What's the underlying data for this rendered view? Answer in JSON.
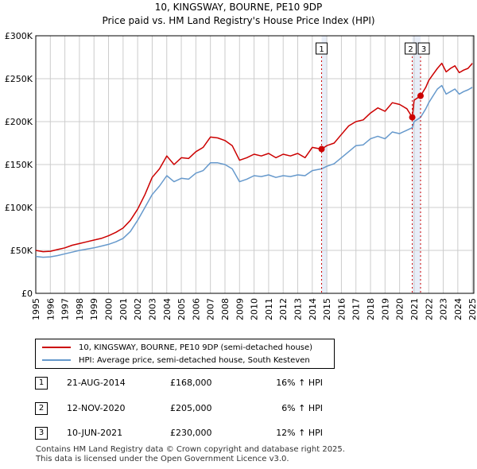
{
  "title_line1": "10, KINGSWAY, BOURNE, PE10 9DP",
  "title_line2": "Price paid vs. HM Land Registry's House Price Index (HPI)",
  "colors": {
    "property": "#cc0000",
    "hpi": "#6699cc",
    "shade": "#e8eef8",
    "grid": "#cccccc"
  },
  "legend": {
    "property_label": "10, KINGSWAY, BOURNE, PE10 9DP (semi-detached house)",
    "hpi_label": "HPI: Average price, semi-detached house, South Kesteven"
  },
  "transactions": [
    {
      "num": "1",
      "date": "21-AUG-2014",
      "price": "£168,000",
      "hpi": "16% ↑ HPI"
    },
    {
      "num": "2",
      "date": "12-NOV-2020",
      "price": "£205,000",
      "hpi": "6% ↑ HPI"
    },
    {
      "num": "3",
      "date": "10-JUN-2021",
      "price": "£230,000",
      "hpi": "12% ↑ HPI"
    }
  ],
  "footer_line1": "Contains HM Land Registry data © Crown copyright and database right 2025.",
  "footer_line2": "This data is licensed under the Open Government Licence v3.0.",
  "chart_data": {
    "type": "line",
    "title": "10, KINGSWAY, BOURNE, PE10 9DP",
    "subtitle": "Price paid vs. HM Land Registry's House Price Index (HPI)",
    "xlabel": "",
    "ylabel": "",
    "xlim": [
      1995,
      2025.1
    ],
    "ylim": [
      0,
      300000
    ],
    "yticks": [
      0,
      50000,
      100000,
      150000,
      200000,
      250000,
      300000
    ],
    "ytick_labels": [
      "£0",
      "£50K",
      "£100K",
      "£150K",
      "£200K",
      "£250K",
      "£300K"
    ],
    "xticks": [
      "1995",
      "1996",
      "1997",
      "1998",
      "1999",
      "2000",
      "2001",
      "2002",
      "2003",
      "2004",
      "2005",
      "2006",
      "2007",
      "2008",
      "2009",
      "2010",
      "2011",
      "2012",
      "2013",
      "2014",
      "2015",
      "2016",
      "2017",
      "2018",
      "2019",
      "2020",
      "2021",
      "2022",
      "2023",
      "2024",
      "2025"
    ],
    "grid": true,
    "legend_position": "below",
    "shaded_ranges": [
      [
        2014.64,
        2015.0
      ],
      [
        2020.87,
        2021.44
      ]
    ],
    "sales": [
      {
        "label": "1",
        "x": 2014.64,
        "y": 168000
      },
      {
        "label": "2",
        "x": 2020.87,
        "y": 205000
      },
      {
        "label": "3",
        "x": 2021.44,
        "y": 230000
      }
    ],
    "series": [
      {
        "name": "10, KINGSWAY, BOURNE, PE10 9DP (semi-detached house)",
        "x": [
          1995,
          1995.5,
          1996,
          1996.5,
          1997,
          1997.5,
          1998,
          1998.5,
          1999,
          1999.5,
          2000,
          2000.5,
          2001,
          2001.5,
          2002,
          2002.5,
          2003,
          2003.5,
          2004,
          2004.5,
          2005,
          2005.5,
          2006,
          2006.5,
          2007,
          2007.5,
          2008,
          2008.5,
          2009,
          2009.5,
          2010,
          2010.5,
          2011,
          2011.5,
          2012,
          2012.5,
          2013,
          2013.5,
          2014,
          2014.64,
          2015,
          2015.5,
          2016,
          2016.5,
          2017,
          2017.5,
          2018,
          2018.5,
          2019,
          2019.5,
          2020,
          2020.5,
          2020.87,
          2021,
          2021.44,
          2021.8,
          2022,
          2022.3,
          2022.6,
          2022.9,
          2023.2,
          2023.5,
          2023.8,
          2024.1,
          2024.4,
          2024.7,
          2025
        ],
        "values": [
          50000,
          48500,
          49000,
          51000,
          53000,
          56000,
          58000,
          60000,
          62000,
          64000,
          67000,
          71000,
          76000,
          85000,
          98000,
          115000,
          135000,
          145000,
          160000,
          150000,
          158000,
          157000,
          165000,
          170000,
          182000,
          181000,
          178000,
          172000,
          155000,
          158000,
          162000,
          160000,
          163000,
          158000,
          162000,
          160000,
          163000,
          158000,
          170000,
          168000,
          172000,
          175000,
          185000,
          195000,
          200000,
          202000,
          210000,
          216000,
          212000,
          222000,
          220000,
          215000,
          205000,
          225000,
          230000,
          240000,
          248000,
          255000,
          262000,
          268000,
          258000,
          262000,
          265000,
          257000,
          260000,
          262000,
          268000
        ]
      },
      {
        "name": "HPI: Average price, semi-detached house, South Kesteven",
        "x": [
          1995,
          1995.5,
          1996,
          1996.5,
          1997,
          1997.5,
          1998,
          1998.5,
          1999,
          1999.5,
          2000,
          2000.5,
          2001,
          2001.5,
          2002,
          2002.5,
          2003,
          2003.5,
          2004,
          2004.5,
          2005,
          2005.5,
          2006,
          2006.5,
          2007,
          2007.5,
          2008,
          2008.5,
          2009,
          2009.5,
          2010,
          2010.5,
          2011,
          2011.5,
          2012,
          2012.5,
          2013,
          2013.5,
          2014,
          2014.64,
          2015,
          2015.5,
          2016,
          2016.5,
          2017,
          2017.5,
          2018,
          2018.5,
          2019,
          2019.5,
          2020,
          2020.5,
          2020.87,
          2021,
          2021.44,
          2021.8,
          2022,
          2022.3,
          2022.6,
          2022.9,
          2023.2,
          2023.5,
          2023.8,
          2024.1,
          2024.4,
          2024.7,
          2025
        ],
        "values": [
          43000,
          42000,
          42500,
          44000,
          46000,
          48000,
          50000,
          51500,
          53000,
          55000,
          57000,
          60000,
          64000,
          72000,
          85000,
          100000,
          115000,
          125000,
          137000,
          130000,
          134000,
          133000,
          140000,
          143000,
          152000,
          152000,
          150000,
          145000,
          130000,
          133000,
          137000,
          136000,
          138000,
          135000,
          137000,
          136000,
          138000,
          137000,
          143000,
          145000,
          148000,
          151000,
          158000,
          165000,
          172000,
          173000,
          180000,
          183000,
          180000,
          188000,
          186000,
          190000,
          193000,
          200000,
          205000,
          215000,
          222000,
          230000,
          238000,
          242000,
          232000,
          235000,
          238000,
          232000,
          235000,
          237000,
          240000
        ]
      }
    ]
  }
}
